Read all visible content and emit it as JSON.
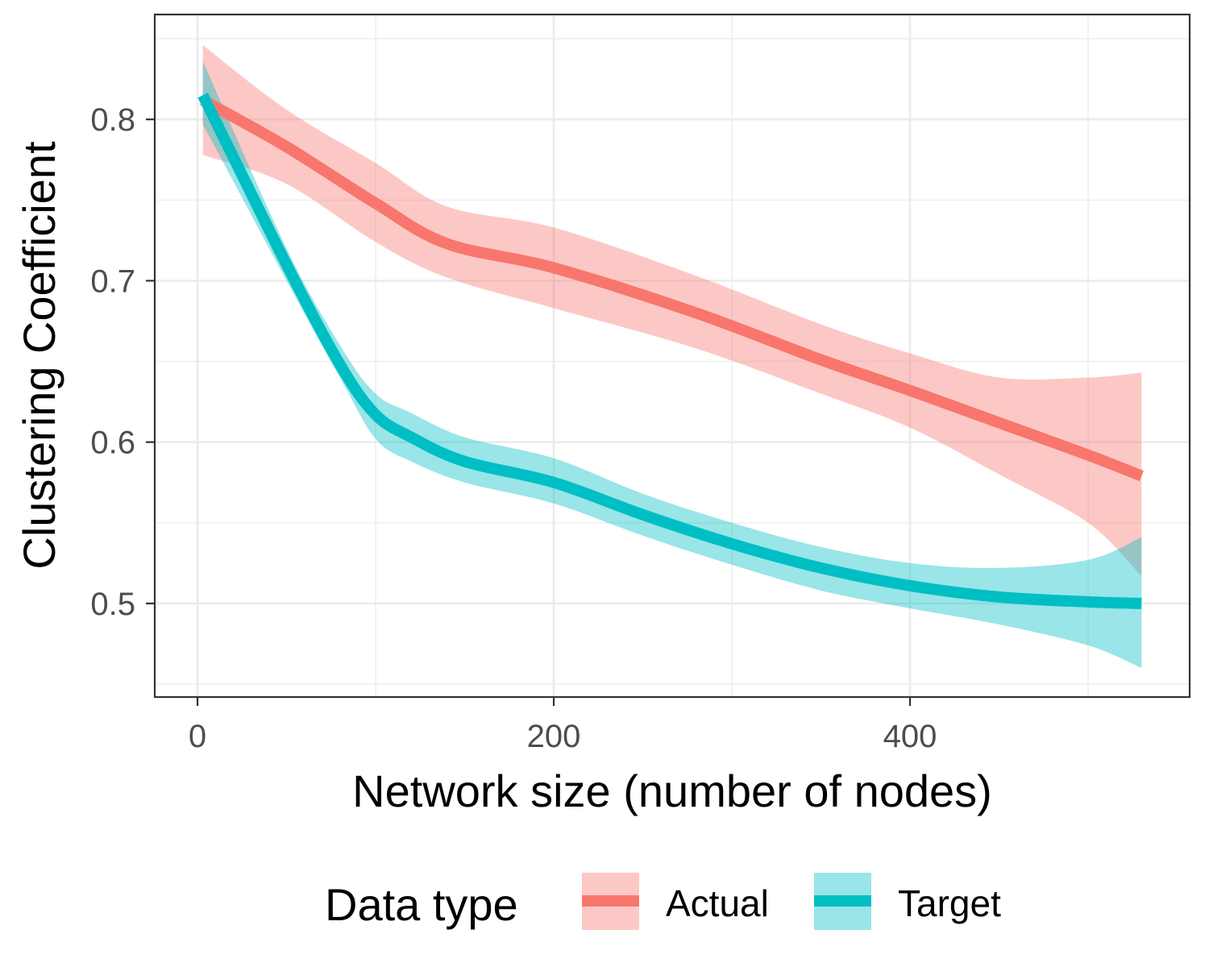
{
  "chart_data": {
    "type": "line",
    "title": "",
    "xlabel": "Network size (number of nodes)",
    "ylabel": "Clustering Coefficient",
    "xlim": [
      -24,
      557
    ],
    "ylim": [
      0.442,
      0.865
    ],
    "x_ticks": [
      0,
      200,
      400
    ],
    "x_tick_labels": [
      "0",
      "200",
      "400"
    ],
    "x_minor_ticks": [
      100,
      300,
      500
    ],
    "y_ticks": [
      0.5,
      0.6,
      0.7,
      0.8
    ],
    "y_tick_labels": [
      "0.5",
      "0.6",
      "0.7",
      "0.8"
    ],
    "y_minor_ticks": [
      0.45,
      0.55,
      0.65,
      0.75,
      0.85
    ],
    "grid": true,
    "legend": {
      "title": "Data type",
      "position": "bottom",
      "entries": [
        "Actual",
        "Target"
      ]
    },
    "series": [
      {
        "name": "Actual",
        "color": "#F8766D",
        "ribbon_color": "#F8766D",
        "x": [
          3,
          50,
          100,
          140,
          200,
          280,
          350,
          400,
          450,
          500,
          530
        ],
        "y": [
          0.812,
          0.783,
          0.748,
          0.723,
          0.708,
          0.68,
          0.651,
          0.632,
          0.612,
          0.592,
          0.579
        ],
        "lower": [
          0.778,
          0.76,
          0.724,
          0.702,
          0.683,
          0.658,
          0.63,
          0.609,
          0.58,
          0.55,
          0.517
        ],
        "upper": [
          0.846,
          0.806,
          0.773,
          0.746,
          0.733,
          0.703,
          0.673,
          0.655,
          0.64,
          0.64,
          0.643
        ]
      },
      {
        "name": "Target",
        "color": "#00BFC4",
        "ribbon_color": "#00BFC4",
        "x": [
          3,
          50,
          80,
          100,
          120,
          150,
          200,
          250,
          300,
          350,
          400,
          450,
          500,
          530
        ],
        "y": [
          0.815,
          0.71,
          0.648,
          0.617,
          0.603,
          0.588,
          0.575,
          0.555,
          0.537,
          0.522,
          0.511,
          0.504,
          0.501,
          0.5
        ],
        "lower": [
          0.797,
          0.7,
          0.64,
          0.602,
          0.588,
          0.575,
          0.562,
          0.542,
          0.524,
          0.508,
          0.497,
          0.487,
          0.474,
          0.46
        ],
        "upper": [
          0.836,
          0.72,
          0.66,
          0.63,
          0.618,
          0.603,
          0.59,
          0.568,
          0.55,
          0.535,
          0.525,
          0.522,
          0.527,
          0.541
        ]
      }
    ]
  }
}
